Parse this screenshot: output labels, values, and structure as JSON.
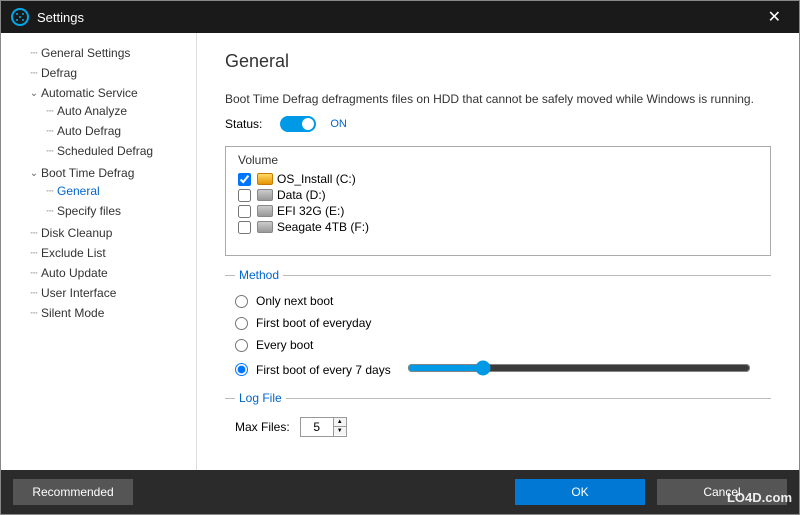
{
  "window": {
    "title": "Settings",
    "close_glyph": "✕"
  },
  "sidebar": {
    "items": [
      {
        "label": "General Settings",
        "kind": "leaf",
        "selected": false,
        "name": "nav-general-settings"
      },
      {
        "label": "Defrag",
        "kind": "leaf",
        "selected": false,
        "name": "nav-defrag"
      },
      {
        "label": "Automatic Service",
        "kind": "expanded",
        "selected": false,
        "name": "nav-automatic-service",
        "children": [
          {
            "label": "Auto Analyze",
            "name": "nav-auto-analyze"
          },
          {
            "label": "Auto Defrag",
            "name": "nav-auto-defrag"
          },
          {
            "label": "Scheduled Defrag",
            "name": "nav-scheduled-defrag"
          }
        ]
      },
      {
        "label": "Boot Time Defrag",
        "kind": "expanded",
        "selected": false,
        "name": "nav-boot-time-defrag",
        "children": [
          {
            "label": "General",
            "selected": true,
            "name": "nav-general"
          },
          {
            "label": "Specify files",
            "name": "nav-specify-files"
          }
        ]
      },
      {
        "label": "Disk Cleanup",
        "kind": "leaf",
        "selected": false,
        "name": "nav-disk-cleanup"
      },
      {
        "label": "Exclude List",
        "kind": "leaf",
        "selected": false,
        "name": "nav-exclude-list"
      },
      {
        "label": "Auto Update",
        "kind": "leaf",
        "selected": false,
        "name": "nav-auto-update"
      },
      {
        "label": "User Interface",
        "kind": "leaf",
        "selected": false,
        "name": "nav-user-interface"
      },
      {
        "label": "Silent Mode",
        "kind": "leaf",
        "selected": false,
        "name": "nav-silent-mode"
      }
    ]
  },
  "main": {
    "heading": "General",
    "description": "Boot Time Defrag defragments files on HDD that cannot be safely moved while Windows is running.",
    "status_label": "Status:",
    "status_on": true,
    "status_value": "ON",
    "volumes": {
      "header": "Volume",
      "rows": [
        {
          "checked": true,
          "icon": "os",
          "label": "OS_Install (C:)",
          "name": "volume-c"
        },
        {
          "checked": false,
          "icon": "drive",
          "label": "Data (D:)",
          "name": "volume-d"
        },
        {
          "checked": false,
          "icon": "drive",
          "label": "EFI 32G (E:)",
          "name": "volume-e"
        },
        {
          "checked": false,
          "icon": "drive",
          "label": "Seagate 4TB (F:)",
          "name": "volume-f"
        }
      ]
    },
    "method": {
      "legend": "Method",
      "options": [
        {
          "label": "Only next boot",
          "checked": false,
          "name": "method-only-next-boot"
        },
        {
          "label": "First boot of everyday",
          "checked": false,
          "name": "method-first-boot-everyday"
        },
        {
          "label": "Every boot",
          "checked": false,
          "name": "method-every-boot"
        },
        {
          "label": "First boot of every 7 days",
          "checked": true,
          "name": "method-first-boot-7days",
          "has_slider": true
        }
      ],
      "slider": {
        "min": 1,
        "max": 30,
        "value": 7
      }
    },
    "logfile": {
      "legend": "Log File",
      "max_files_label": "Max Files:",
      "max_files_value": "5"
    }
  },
  "footer": {
    "recommended_label": "Recommended",
    "ok_label": "OK",
    "cancel_label": "Cancel"
  },
  "watermark": "LO4D.com",
  "colors": {
    "accent": "#0099e5",
    "link": "#0066cc",
    "titlebar_bg": "#1a1a1a",
    "footer_bg": "#2b2b2b",
    "ok_btn": "#0078d4",
    "grey_btn": "#555555"
  }
}
